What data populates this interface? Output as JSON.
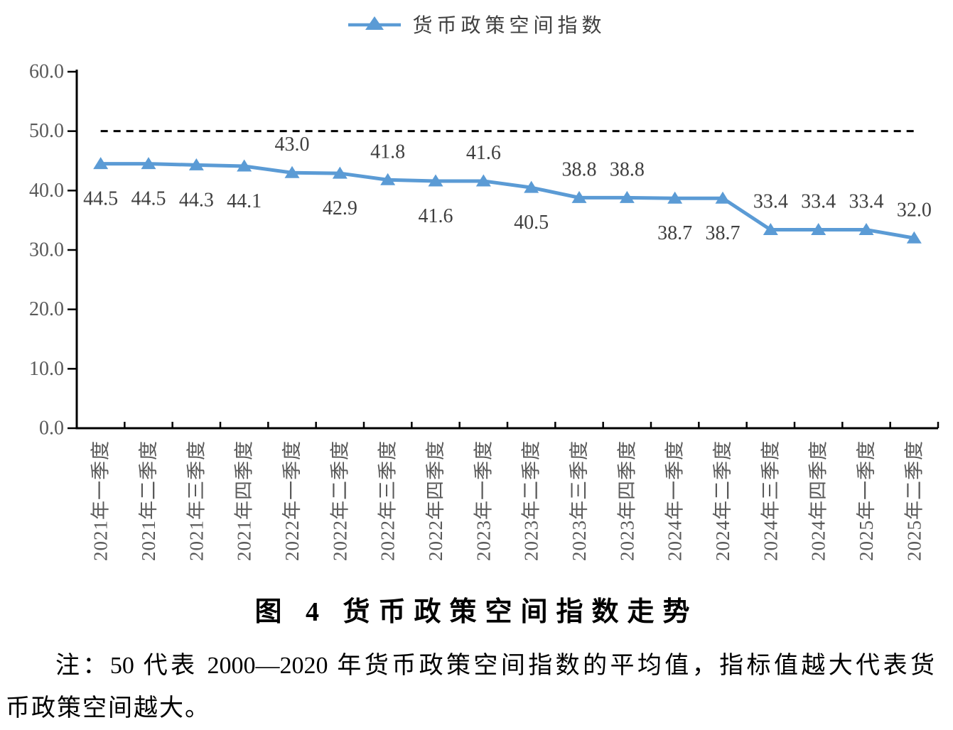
{
  "legend": {
    "label": "货币政策空间指数"
  },
  "chart_data": {
    "type": "line",
    "title": "图 4  货币政策空间指数走势",
    "categories": [
      "2021年一季度",
      "2021年二季度",
      "2021年三季度",
      "2021年四季度",
      "2022年一季度",
      "2022年二季度",
      "2022年三季度",
      "2022年四季度",
      "2023年一季度",
      "2023年二季度",
      "2023年三季度",
      "2023年四季度",
      "2024年一季度",
      "2024年二季度",
      "2024年三季度",
      "2024年四季度",
      "2025年一季度",
      "2025年二季度"
    ],
    "series": [
      {
        "name": "货币政策空间指数",
        "values": [
          44.5,
          44.5,
          44.3,
          44.1,
          43.0,
          42.9,
          41.8,
          41.6,
          41.6,
          40.5,
          38.8,
          38.8,
          38.7,
          38.7,
          33.4,
          33.4,
          33.4,
          32.0
        ],
        "labels": [
          "44.5",
          "44.5",
          "44.3",
          "44.1",
          "43.0",
          "42.9",
          "41.8",
          "41.6",
          "41.6",
          "40.5",
          "38.8",
          "38.8",
          "38.7",
          "38.7",
          "33.4",
          "33.4",
          "33.4",
          "32.0"
        ],
        "label_side": [
          "below",
          "below",
          "below",
          "below",
          "above",
          "below",
          "above",
          "below",
          "above",
          "below",
          "above",
          "above",
          "below",
          "below",
          "above",
          "above",
          "above",
          "above"
        ],
        "marker": "triangle"
      }
    ],
    "ylim": [
      0,
      60
    ],
    "ytick_labels": [
      "0.0",
      "10.0",
      "20.0",
      "30.0",
      "40.0",
      "50.0",
      "60.0"
    ],
    "reference_line": {
      "value": 50.0,
      "style": "dashed"
    },
    "legend_position": "top",
    "grid": false
  },
  "caption": {
    "text": "图 4  货币政策空间指数走势"
  },
  "note": {
    "line1": "注：50 代表 2000—2020 年货币政策空间指数的平均值，指标值越大代表货",
    "line2": "币政策空间越大。"
  },
  "colors": {
    "series": "#5B9BD5",
    "axis": "#000000",
    "reference": "#000000",
    "tick_label": "#595959",
    "data_label": "#3F3F3F"
  }
}
